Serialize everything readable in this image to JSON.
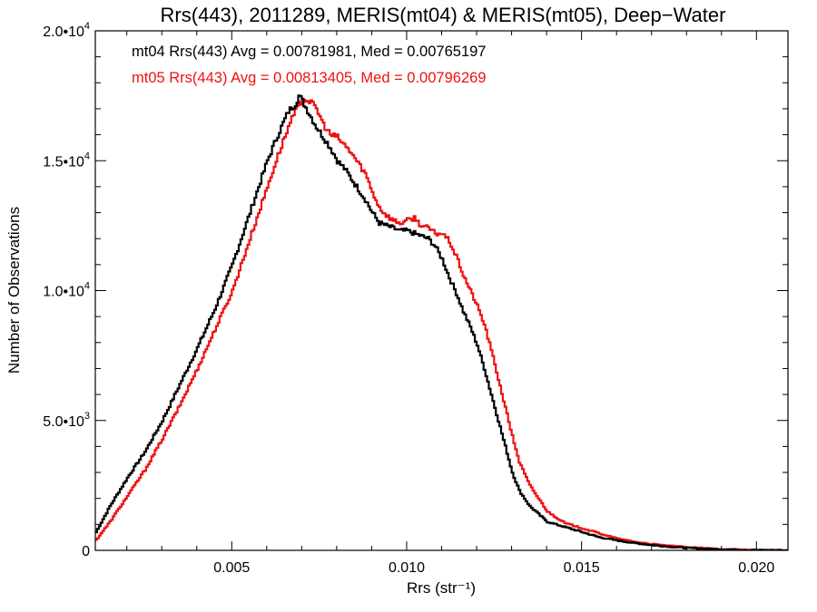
{
  "chart_data": {
    "type": "line",
    "title": "Rrs(443), 2011289, MERIS(mt04) & MERIS(mt05), Deep−Water",
    "xlabel": "Rrs (str⁻¹)",
    "ylabel": "Number of Observations",
    "xlim": [
      0.0011,
      0.0209
    ],
    "ylim": [
      0,
      20000
    ],
    "x_ticks": [
      {
        "value": 0.005,
        "label": "0.005"
      },
      {
        "value": 0.01,
        "label": "0.010"
      },
      {
        "value": 0.015,
        "label": "0.015"
      },
      {
        "value": 0.02,
        "label": "0.020"
      }
    ],
    "y_ticks": [
      {
        "value": 0,
        "base": "0",
        "exp": ""
      },
      {
        "value": 5000,
        "base": "5.0•10",
        "exp": "3"
      },
      {
        "value": 10000,
        "base": "1.0•10",
        "exp": "4"
      },
      {
        "value": 15000,
        "base": "1.5•10",
        "exp": "4"
      },
      {
        "value": 20000,
        "base": "2.0•10",
        "exp": "4"
      }
    ],
    "grid": false,
    "legend_position": "top-left",
    "annotations": [
      {
        "text": "mt04 Rrs(443) Avg = 0.00781981, Med = 0.00765197",
        "color": "#000000"
      },
      {
        "text": "mt05 Rrs(443) Avg = 0.00813405, Med = 0.00796269",
        "color": "#ee1111"
      }
    ],
    "series": [
      {
        "color": "#000000",
        "x": [
          0.0011,
          0.0015,
          0.002,
          0.0025,
          0.003,
          0.0035,
          0.004,
          0.0045,
          0.005,
          0.0055,
          0.006,
          0.0063,
          0.0066,
          0.0068,
          0.0069,
          0.007,
          0.0072,
          0.0074,
          0.0076,
          0.0078,
          0.008,
          0.0082,
          0.0084,
          0.0086,
          0.0088,
          0.009,
          0.0092,
          0.0094,
          0.0096,
          0.0098,
          0.01,
          0.0102,
          0.0104,
          0.0106,
          0.0108,
          0.011,
          0.0112,
          0.0114,
          0.0116,
          0.0118,
          0.012,
          0.0122,
          0.0124,
          0.0126,
          0.0128,
          0.013,
          0.0132,
          0.0135,
          0.014,
          0.0145,
          0.015,
          0.0155,
          0.016,
          0.0165,
          0.017,
          0.0175,
          0.018,
          0.0185,
          0.019,
          0.0195,
          0.02,
          0.0209
        ],
        "y": [
          700,
          1700,
          2800,
          3800,
          5000,
          6400,
          7800,
          9300,
          11000,
          13000,
          15000,
          16000,
          16900,
          17200,
          17500,
          17300,
          16800,
          16300,
          15900,
          15500,
          15000,
          14700,
          14300,
          13900,
          13500,
          13000,
          12600,
          12500,
          12400,
          12300,
          12300,
          12200,
          12100,
          12000,
          11700,
          11200,
          10500,
          9900,
          9200,
          8600,
          7900,
          7000,
          6000,
          5000,
          4000,
          3000,
          2300,
          1700,
          1100,
          900,
          700,
          500,
          380,
          280,
          200,
          140,
          90,
          60,
          35,
          20,
          10,
          0
        ]
      },
      {
        "color": "#ee1111",
        "x": [
          0.0011,
          0.0015,
          0.002,
          0.0025,
          0.003,
          0.0035,
          0.004,
          0.0045,
          0.005,
          0.0055,
          0.006,
          0.0063,
          0.0066,
          0.0068,
          0.007,
          0.0072,
          0.0074,
          0.0076,
          0.0078,
          0.008,
          0.0082,
          0.0084,
          0.0086,
          0.0088,
          0.009,
          0.0092,
          0.0094,
          0.0096,
          0.0098,
          0.01,
          0.0102,
          0.0104,
          0.0106,
          0.0108,
          0.011,
          0.0112,
          0.0114,
          0.0116,
          0.0118,
          0.012,
          0.0122,
          0.0124,
          0.0126,
          0.0128,
          0.013,
          0.0132,
          0.0135,
          0.014,
          0.0145,
          0.015,
          0.0155,
          0.016,
          0.0165,
          0.017,
          0.0175,
          0.018,
          0.0185,
          0.019,
          0.0195,
          0.02,
          0.0209
        ],
        "y": [
          400,
          1100,
          2100,
          3100,
          4300,
          5600,
          7000,
          8500,
          10000,
          12000,
          14000,
          15200,
          16300,
          16900,
          17400,
          17300,
          17000,
          16400,
          16000,
          15900,
          15600,
          15300,
          14900,
          14500,
          13800,
          13200,
          12900,
          12700,
          12600,
          12700,
          12800,
          12500,
          12400,
          12200,
          12200,
          11900,
          11300,
          10600,
          10000,
          9400,
          8700,
          7700,
          6600,
          5500,
          4400,
          3400,
          2500,
          1500,
          1050,
          850,
          650,
          450,
          330,
          240,
          170,
          120,
          80,
          50,
          30,
          15,
          0
        ]
      }
    ]
  }
}
